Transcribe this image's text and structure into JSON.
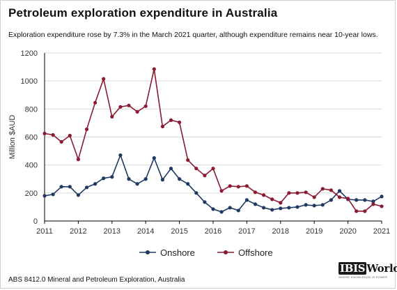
{
  "title": "Petroleum exploration expenditure in Australia",
  "subtitle": "Exploration expenditure rose by 7.3% in the March 2021 quarter, although expenditure remains near 10-year lows.",
  "source": "ABS 8412.0 Mineral and Petroleum Exploration, Australia",
  "logo": {
    "text": "IBISWorld",
    "tagline": "WHERE KNOWLEDGE IS POWER"
  },
  "colors": {
    "onshore": "#1f3864",
    "offshore": "#8b1a32",
    "grid": "#d9d9d9",
    "axis": "#000000"
  },
  "chart_data": {
    "type": "line",
    "title": "Petroleum exploration expenditure in Australia",
    "xlabel": "",
    "ylabel": "Million $AUD",
    "xlim": [
      2011,
      2021
    ],
    "ylim": [
      0,
      1200
    ],
    "x_ticks": [
      "2011",
      "2012",
      "2013",
      "2014",
      "2015",
      "2016",
      "2017",
      "2018",
      "2019",
      "2020",
      "2021"
    ],
    "y_ticks": [
      "0",
      "200",
      "400",
      "600",
      "800",
      "1000",
      "1200"
    ],
    "grid": true,
    "legend_position": "bottom",
    "x": [
      2011.0,
      2011.25,
      2011.5,
      2011.75,
      2012.0,
      2012.25,
      2012.5,
      2012.75,
      2013.0,
      2013.25,
      2013.5,
      2013.75,
      2014.0,
      2014.25,
      2014.5,
      2014.75,
      2015.0,
      2015.25,
      2015.5,
      2015.75,
      2016.0,
      2016.25,
      2016.5,
      2016.75,
      2017.0,
      2017.25,
      2017.5,
      2017.75,
      2018.0,
      2018.25,
      2018.5,
      2018.75,
      2019.0,
      2019.25,
      2019.5,
      2019.75,
      2020.0,
      2020.25,
      2020.5,
      2020.75,
      2021.0
    ],
    "series": [
      {
        "name": "Onshore",
        "values": [
          180,
          190,
          245,
          245,
          185,
          240,
          265,
          305,
          315,
          470,
          300,
          265,
          300,
          450,
          295,
          375,
          300,
          265,
          200,
          135,
          85,
          65,
          95,
          75,
          150,
          120,
          95,
          80,
          90,
          95,
          100,
          115,
          110,
          115,
          150,
          215,
          155,
          150,
          150,
          140,
          175
        ]
      },
      {
        "name": "Offshore",
        "values": [
          625,
          615,
          565,
          610,
          440,
          655,
          845,
          1015,
          745,
          815,
          825,
          780,
          820,
          1085,
          675,
          720,
          705,
          435,
          375,
          325,
          375,
          215,
          250,
          245,
          250,
          205,
          185,
          155,
          130,
          200,
          200,
          205,
          170,
          230,
          220,
          170,
          160,
          70,
          70,
          120,
          105
        ]
      }
    ]
  }
}
